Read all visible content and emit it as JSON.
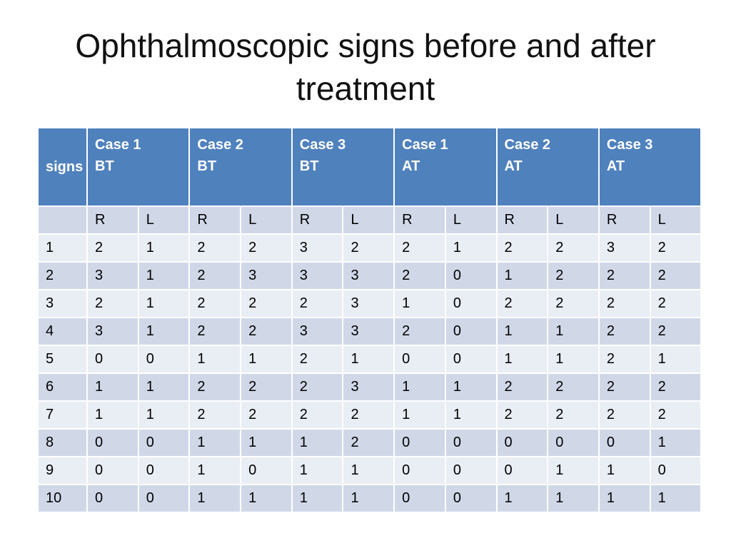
{
  "title": "Ophthalmoscopic signs before and after treatment",
  "table": {
    "signs_header": "signs",
    "case_headers": [
      {
        "line1": "Case 1",
        "line2": "BT"
      },
      {
        "line1": "Case 2",
        "line2": "BT"
      },
      {
        "line1": "Case 3",
        "line2": "BT"
      },
      {
        "line1": "Case 1",
        "line2": "AT"
      },
      {
        "line1": "Case 2",
        "line2": "AT"
      },
      {
        "line1": "Case 3",
        "line2": "AT"
      }
    ],
    "sub_headers": [
      "",
      "R",
      "L",
      "R",
      "L",
      "R",
      "L",
      "R",
      "L",
      "R",
      "L",
      "R",
      "L"
    ],
    "rows": [
      [
        "1",
        "2",
        "1",
        "2",
        "2",
        "3",
        "2",
        "2",
        "1",
        "2",
        "2",
        "3",
        "2"
      ],
      [
        "2",
        "3",
        "1",
        "2",
        "3",
        "3",
        "3",
        "2",
        "0",
        "1",
        "2",
        "2",
        "2"
      ],
      [
        "3",
        "2",
        "1",
        "2",
        "2",
        "2",
        "3",
        "1",
        "0",
        "2",
        "2",
        "2",
        "2"
      ],
      [
        "4",
        "3",
        "1",
        "2",
        "2",
        "3",
        "3",
        "2",
        "0",
        "1",
        "1",
        "2",
        "2"
      ],
      [
        "5",
        "0",
        "0",
        "1",
        "1",
        "2",
        "1",
        "0",
        "0",
        "1",
        "1",
        "2",
        "1"
      ],
      [
        "6",
        "1",
        "1",
        "2",
        "2",
        "2",
        "3",
        "1",
        "1",
        "2",
        "2",
        "2",
        "2"
      ],
      [
        "7",
        "1",
        "1",
        "2",
        "2",
        "2",
        "2",
        "1",
        "1",
        "2",
        "2",
        "2",
        "2"
      ],
      [
        "8",
        "0",
        "0",
        "1",
        "1",
        "1",
        "2",
        "0",
        "0",
        "0",
        "0",
        "0",
        "1"
      ],
      [
        "9",
        "0",
        "0",
        "1",
        "0",
        "1",
        "1",
        "0",
        "0",
        "0",
        "1",
        "1",
        "0"
      ],
      [
        "10",
        "0",
        "0",
        "1",
        "1",
        "1",
        "1",
        "0",
        "0",
        "1",
        "1",
        "1",
        "1"
      ]
    ]
  },
  "colors": {
    "header_bg": "#4f81bd",
    "row_light": "#e9edf4",
    "row_dark": "#d0d8e8"
  }
}
